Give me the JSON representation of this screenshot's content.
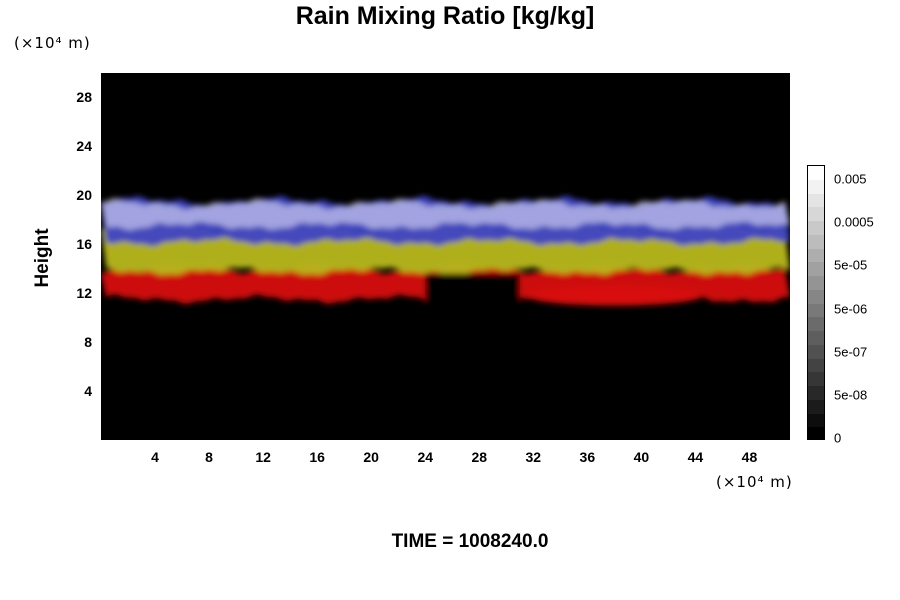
{
  "chart_data": {
    "type": "heatmap",
    "title": "Rain Mixing Ratio [kg/kg]",
    "ylabel": "Height",
    "x_unit": "(×10⁴ m)",
    "y_unit": "(×10⁴ m)",
    "x_ticks": [
      "4",
      "8",
      "12",
      "16",
      "20",
      "24",
      "28",
      "32",
      "36",
      "40",
      "44",
      "48"
    ],
    "y_ticks": [
      "4",
      "8",
      "12",
      "16",
      "20",
      "24",
      "28"
    ],
    "xlim": [
      0,
      51
    ],
    "ylim": [
      0,
      30
    ],
    "colorbar": {
      "tick_labels": [
        "0.005",
        "0.0005",
        "5e-05",
        "5e-06",
        "5e-07",
        "5e-08",
        "0"
      ],
      "levels": 20,
      "colors": [
        "#000000",
        "#ffffff"
      ]
    },
    "bands": [
      {
        "name": "red",
        "color": "#d80d0d",
        "y_bottom": 11.5,
        "y_top": 14.0
      },
      {
        "name": "yellow",
        "color": "#b8b81c",
        "y_bottom": 13.8,
        "y_top": 17.3
      },
      {
        "name": "blue",
        "color": "#3f44c4",
        "y_bottom": 16.2,
        "y_top": 19.5
      },
      {
        "name": "lavender",
        "color": "#c4c4ec",
        "y_bottom": 17.5,
        "y_top": 19.3
      }
    ],
    "colors": {
      "background": "#000000"
    }
  },
  "footer": {
    "time_label": "TIME = 1008240.0"
  }
}
